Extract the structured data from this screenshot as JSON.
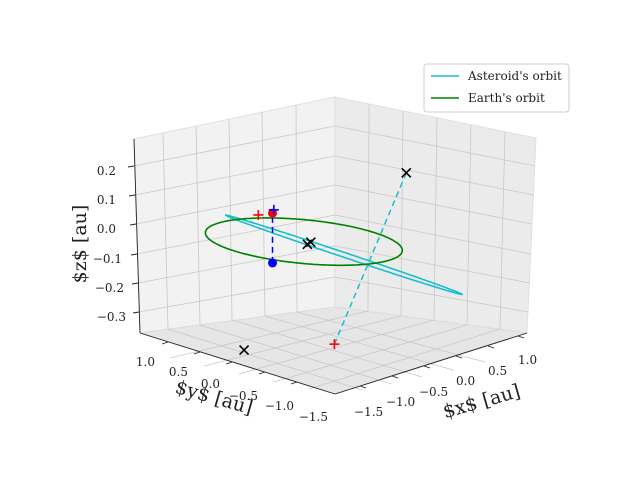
{
  "chart_data": {
    "type": "line",
    "projection": "3d",
    "title": "",
    "xlabel": "$x$ [au]",
    "ylabel": "$y$ [au]",
    "zlabel": "$z$ [au]",
    "xlim": [
      -1.6,
      1.2
    ],
    "ylim": [
      -1.6,
      1.2
    ],
    "zlim": [
      -0.34,
      0.28
    ],
    "x_ticks": [
      "−1.5",
      "−1.0",
      "−0.5",
      "0.0",
      "0.5",
      "1.0"
    ],
    "y_ticks": [
      "−1.5",
      "−1.0",
      "−0.5",
      "0.0",
      "0.5",
      "1.0"
    ],
    "z_ticks": [
      "−0.3",
      "−0.2",
      "−0.1",
      "0.0",
      "0.1",
      "0.2"
    ],
    "grid": true,
    "legend_position": "top-right",
    "series": [
      {
        "name": "Asteroid's orbit",
        "color": "#17becf",
        "kind": "orbit",
        "a": 1.2,
        "e": 0.35,
        "inclination_deg": 7,
        "node_deg": 30
      },
      {
        "name": "Earth's orbit",
        "color": "#008000",
        "kind": "orbit",
        "a": 1.0,
        "e": 0.0,
        "inclination_deg": 0
      }
    ],
    "markers": [
      {
        "label": "Asteroid position",
        "type": "dot",
        "color": "#0000ff",
        "x": -0.55,
        "y": 1.0,
        "z": 0.0
      },
      {
        "label": "Earth position",
        "type": "dot",
        "color": "#ff0000",
        "x": 1.05,
        "y": -0.6,
        "z": 0.0
      },
      {
        "type": "plus",
        "color": "#0000ff",
        "x": 1.05,
        "y": -0.62,
        "z": 0.01
      },
      {
        "type": "plus",
        "color": "#ff0000",
        "x": 0.75,
        "y": -0.1,
        "z": 0.03
      },
      {
        "type": "plus",
        "color": "#ff0000",
        "x": -0.6,
        "y": 0.2,
        "z": -0.28
      },
      {
        "type": "cross",
        "color": "#000000",
        "x": -0.35,
        "y": -1.15,
        "z": 0.21
      },
      {
        "type": "cross",
        "color": "#000000",
        "x": -0.1,
        "y": 0.05,
        "z": 0.0
      },
      {
        "type": "cross",
        "color": "#000000",
        "x": -0.05,
        "y": -0.05,
        "z": 0.0
      },
      {
        "type": "cross",
        "color": "#000000",
        "x": -0.2,
        "y": 1.1,
        "z": -0.3
      }
    ],
    "lines": [
      {
        "style": "dashed",
        "color": "#0000ff",
        "from": [
          -0.55,
          1.0,
          0.0
        ],
        "to": [
          1.05,
          -0.6,
          0.0
        ]
      },
      {
        "style": "dashed",
        "color": "#17becf",
        "from": [
          -0.35,
          -1.15,
          0.21
        ],
        "to": [
          -0.6,
          0.2,
          -0.28
        ]
      }
    ]
  }
}
